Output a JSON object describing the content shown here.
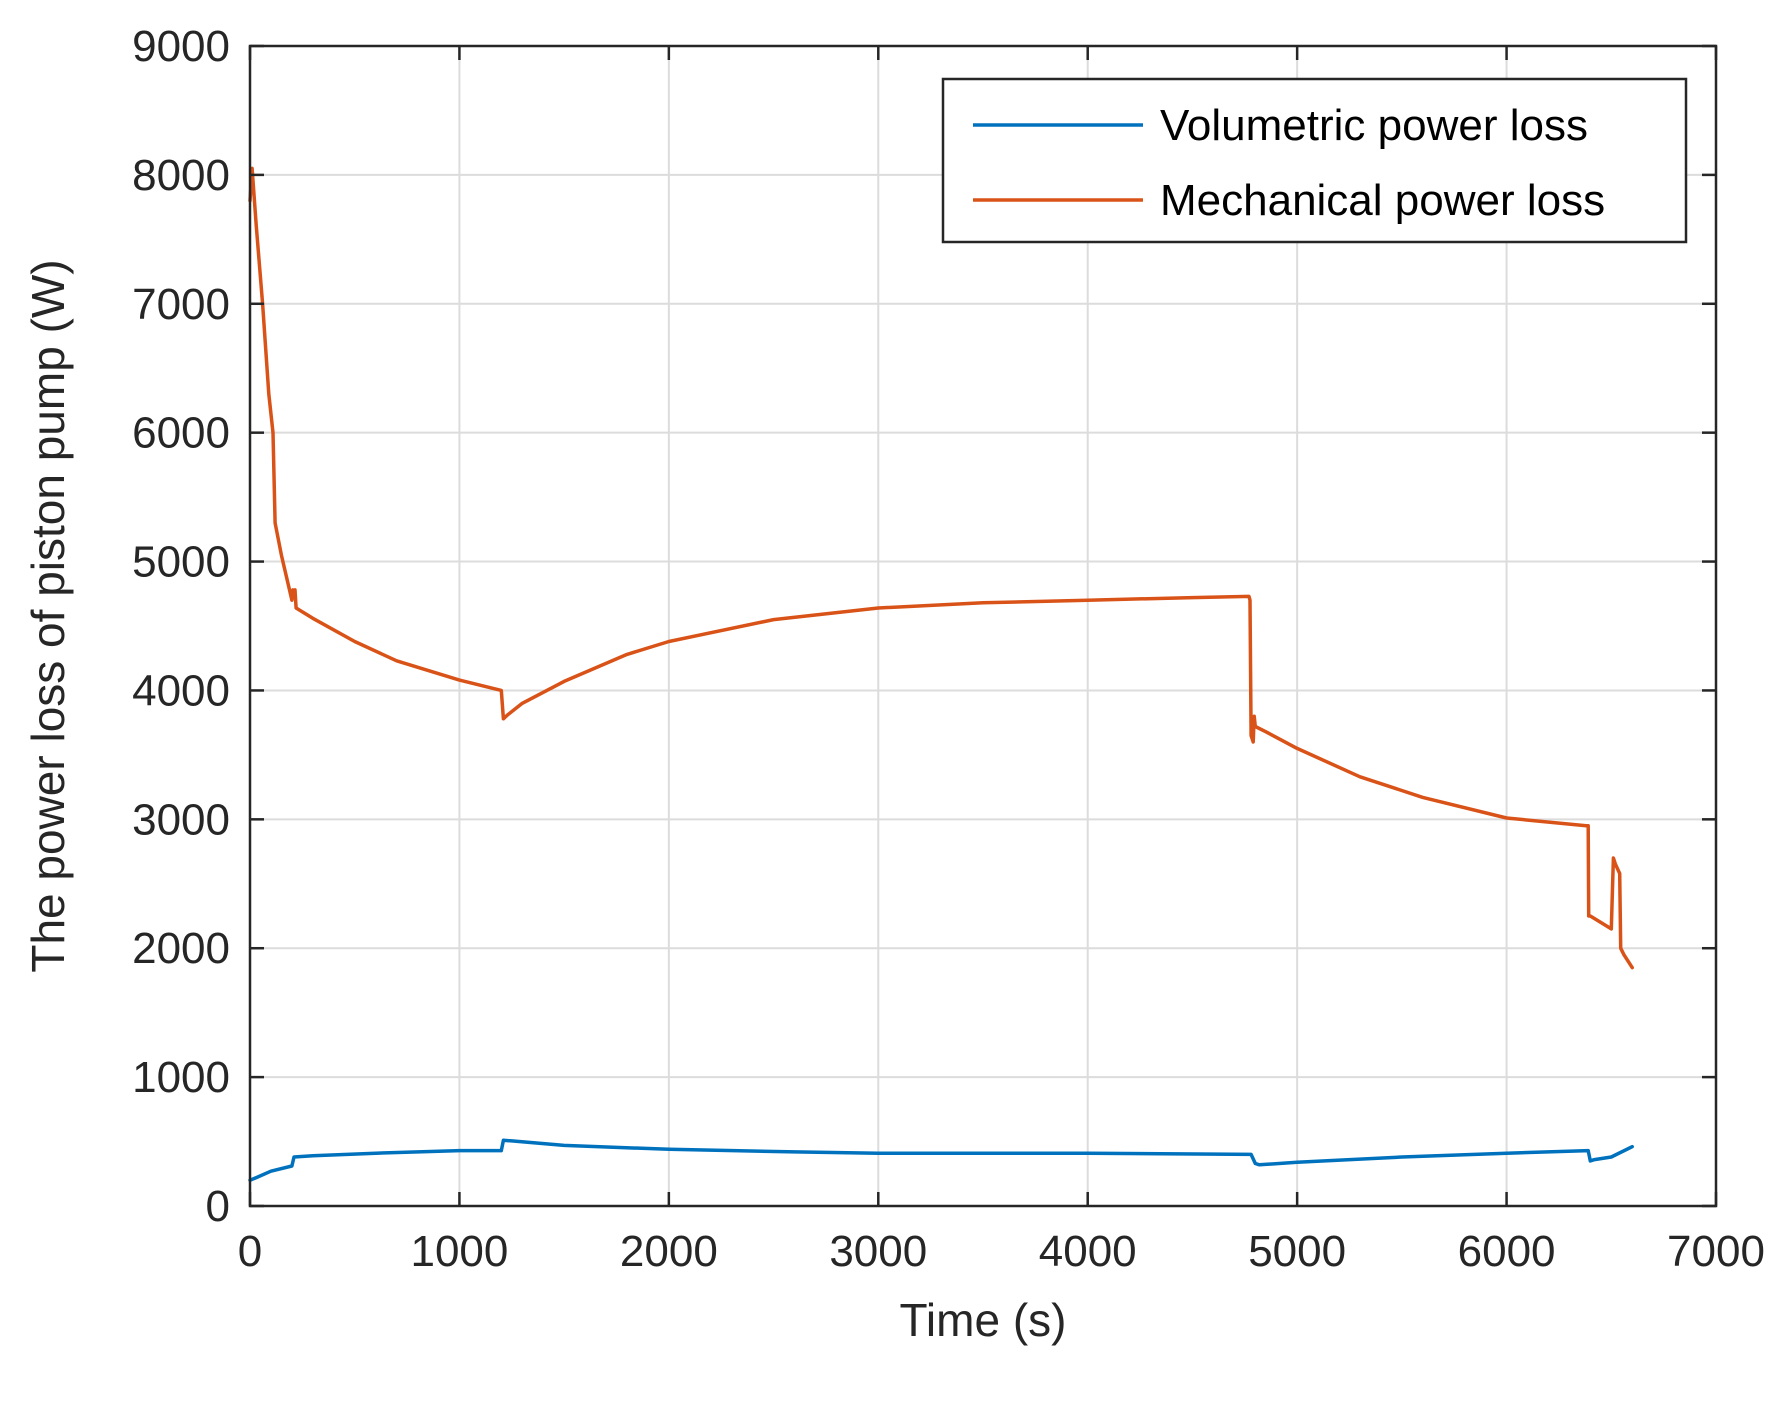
{
  "chart_data": {
    "type": "line",
    "title": "",
    "xlabel": "Time (s)",
    "ylabel": "The power loss of piston pump (W)",
    "xlim": [
      0,
      7000
    ],
    "ylim": [
      0,
      9000
    ],
    "xticks": [
      "0",
      "1000",
      "2000",
      "3000",
      "4000",
      "5000",
      "6000",
      "7000"
    ],
    "yticks": [
      "0",
      "1000",
      "2000",
      "3000",
      "4000",
      "5000",
      "6000",
      "7000",
      "8000",
      "9000"
    ],
    "grid": true,
    "legend_position": "top-right",
    "series": [
      {
        "name": "Volumetric power loss",
        "color": "#0072bd",
        "x": [
          0,
          30,
          100,
          200,
          210,
          300,
          600,
          1000,
          1200,
          1210,
          1250,
          1500,
          2000,
          2600,
          3000,
          4000,
          4780,
          4800,
          4820,
          5000,
          5500,
          6000,
          6390,
          6400,
          6420,
          6500,
          6600
        ],
        "y": [
          200,
          220,
          270,
          310,
          380,
          390,
          410,
          430,
          430,
          510,
          505,
          470,
          440,
          420,
          410,
          410,
          400,
          330,
          320,
          340,
          380,
          410,
          430,
          350,
          360,
          380,
          460
        ]
      },
      {
        "name": "Mechanical power loss",
        "color": "#d95319",
        "x": [
          0,
          10,
          30,
          60,
          90,
          110,
          120,
          150,
          200,
          205,
          210,
          215,
          220,
          300,
          500,
          700,
          1000,
          1200,
          1210,
          1230,
          1300,
          1500,
          1800,
          2000,
          2500,
          3000,
          3500,
          4000,
          4500,
          4770,
          4775,
          4780,
          4790,
          4795,
          4800,
          4850,
          5000,
          5300,
          5600,
          6000,
          6380,
          6390,
          6392,
          6400,
          6500,
          6510,
          6520,
          6540,
          6545,
          6560,
          6600
        ],
        "y": [
          7800,
          8050,
          7600,
          7000,
          6300,
          6000,
          5300,
          5050,
          4700,
          4780,
          4720,
          4780,
          4640,
          4560,
          4380,
          4230,
          4080,
          4000,
          3780,
          3810,
          3900,
          4070,
          4280,
          4380,
          4550,
          4640,
          4680,
          4700,
          4720,
          4730,
          4700,
          3650,
          3600,
          3800,
          3720,
          3680,
          3550,
          3330,
          3170,
          3010,
          2950,
          2950,
          2250,
          2250,
          2150,
          2700,
          2650,
          2580,
          2000,
          1950,
          1850
        ]
      }
    ]
  }
}
